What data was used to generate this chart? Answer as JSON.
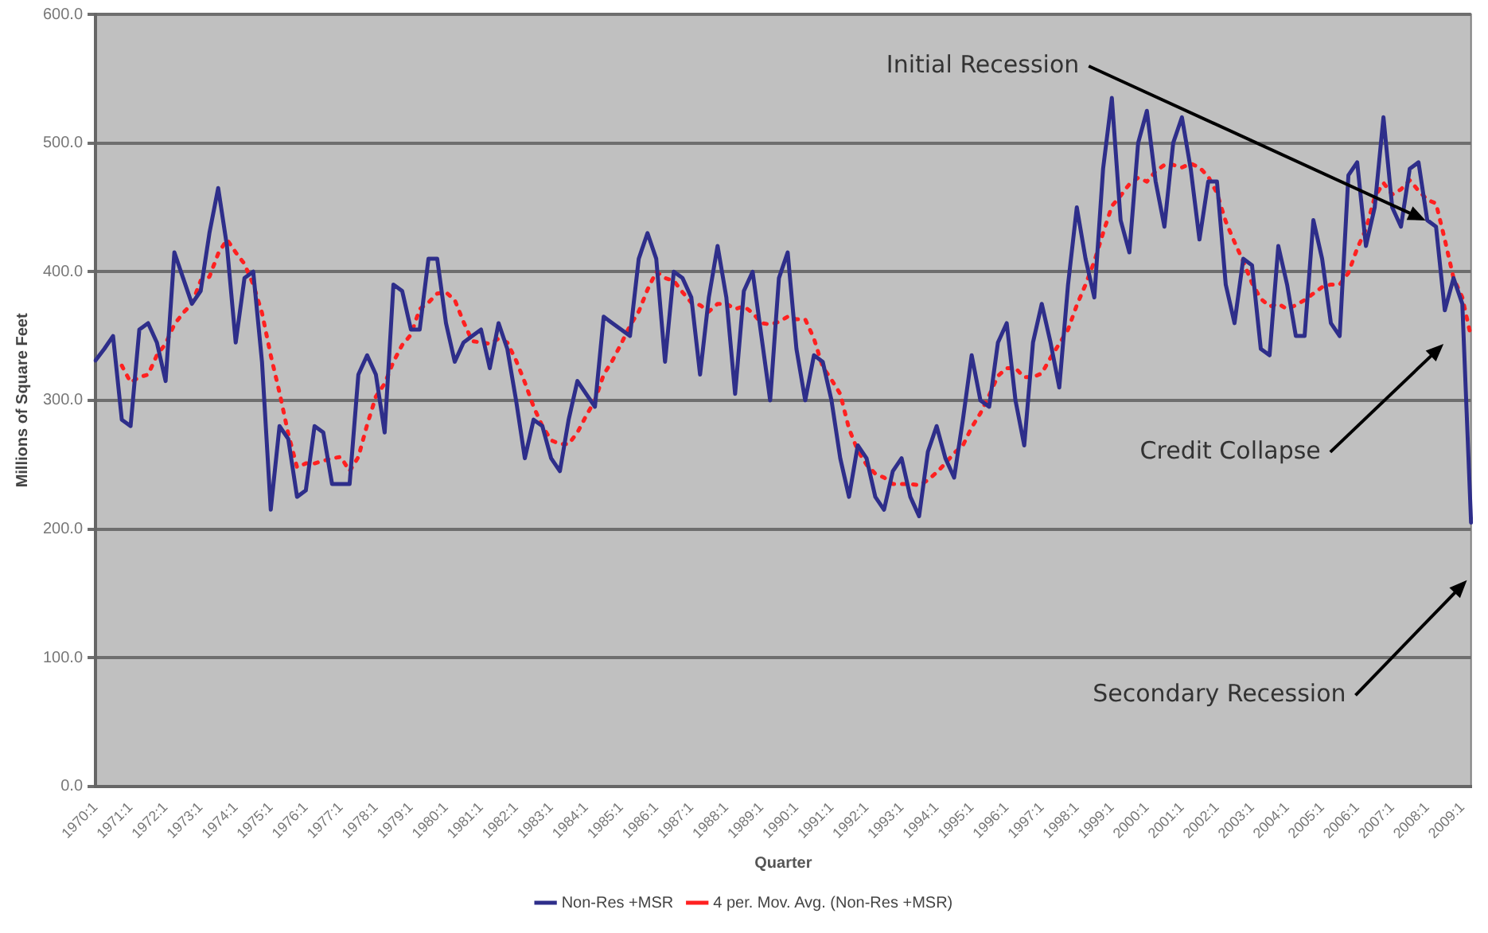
{
  "chart_data": {
    "type": "line",
    "xlabel": "Quarter",
    "ylabel": "Millions of Square Feet",
    "categories": [
      "1970:1",
      null,
      null,
      null,
      "1971:1",
      null,
      null,
      null,
      "1972:1",
      null,
      null,
      null,
      "1973:1",
      null,
      null,
      null,
      "1974:1",
      null,
      null,
      null,
      "1975:1",
      null,
      null,
      null,
      "1976:1",
      null,
      null,
      null,
      "1977:1",
      null,
      null,
      null,
      "1978:1",
      null,
      null,
      null,
      "1979:1",
      null,
      null,
      null,
      "1980:1",
      null,
      null,
      null,
      "1981:1",
      null,
      null,
      null,
      "1982:1",
      null,
      null,
      null,
      "1983:1",
      null,
      null,
      null,
      "1984:1",
      null,
      null,
      null,
      "1985:1",
      null,
      null,
      null,
      "1986:1",
      null,
      null,
      null,
      "1987:1",
      null,
      null,
      null,
      "1988:1",
      null,
      null,
      null,
      "1989:1",
      null,
      null,
      null,
      "1990:1",
      null,
      null,
      null,
      "1991:1",
      null,
      null,
      null,
      "1992:1",
      null,
      null,
      null,
      "1993:1",
      null,
      null,
      null,
      "1994:1",
      null,
      null,
      null,
      "1995:1",
      null,
      null,
      null,
      "1996:1",
      null,
      null,
      null,
      "1997:1",
      null,
      null,
      null,
      "1998:1",
      null,
      null,
      null,
      "1999:1",
      null,
      null,
      null,
      "2000:1",
      null,
      null,
      null,
      "2001:1",
      null,
      null,
      null,
      "2002:1",
      null,
      null,
      null,
      "2003:1",
      null,
      null,
      null,
      "2004:1",
      null,
      null,
      null,
      "2005:1",
      null,
      null,
      null,
      "2006:1",
      null,
      null,
      null,
      "2007:1",
      null,
      null,
      null,
      "2008:1",
      null,
      null,
      null,
      "2009:1",
      null
    ],
    "series": [
      {
        "name": "Non-Res +MSR",
        "color": "#2e2e8a",
        "line_style": "solid",
        "values": [
          331,
          340,
          350,
          285,
          280,
          355,
          360,
          345,
          315,
          415,
          395,
          375,
          385,
          430,
          465,
          420,
          345,
          395,
          400,
          330,
          215,
          280,
          270,
          225,
          230,
          280,
          275,
          235,
          235,
          235,
          320,
          335,
          320,
          275,
          390,
          385,
          355,
          355,
          410,
          410,
          360,
          330,
          345,
          350,
          355,
          325,
          360,
          340,
          300,
          255,
          285,
          280,
          255,
          245,
          285,
          315,
          305,
          295,
          365,
          360,
          355,
          350,
          410,
          430,
          410,
          330,
          400,
          395,
          380,
          320,
          380,
          420,
          380,
          305,
          385,
          400,
          350,
          300,
          395,
          415,
          340,
          300,
          335,
          330,
          300,
          255,
          225,
          265,
          255,
          225,
          215,
          245,
          255,
          225,
          210,
          260,
          280,
          255,
          240,
          285,
          335,
          300,
          295,
          345,
          360,
          300,
          265,
          345,
          375,
          345,
          310,
          390,
          450,
          410,
          380,
          480,
          535,
          440,
          415,
          500,
          525,
          470,
          435,
          500,
          520,
          480,
          425,
          470,
          470,
          390,
          360,
          410,
          405,
          340,
          335,
          420,
          390,
          350,
          350,
          440,
          410,
          360,
          350,
          475,
          485,
          420,
          450,
          520,
          450,
          435,
          480,
          485,
          440,
          435,
          370,
          395,
          375,
          205
        ]
      },
      {
        "name": "4 per. Mov. Avg. (Non-Res +MSR)",
        "color": "#ff2020",
        "line_style": "dotted",
        "values": [
          null,
          null,
          null,
          327,
          314,
          318,
          320,
          335,
          344,
          359,
          368,
          375,
          393,
          396,
          414,
          425,
          415,
          406,
          390,
          368,
          335,
          306,
          274,
          248,
          251,
          251,
          253,
          255,
          256,
          245,
          256,
          281,
          303,
          313,
          330,
          343,
          351,
          371,
          376,
          383,
          384,
          378,
          361,
          346,
          345,
          344,
          348,
          345,
          331,
          314,
          295,
          280,
          269,
          266,
          266,
          275,
          288,
          300,
          320,
          331,
          344,
          358,
          369,
          386,
          400,
          395,
          393,
          384,
          376,
          374,
          369,
          375,
          375,
          371,
          373,
          368,
          360,
          359,
          361,
          365,
          363,
          363,
          348,
          326,
          316,
          305,
          278,
          261,
          250,
          243,
          240,
          235,
          235,
          235,
          234,
          238,
          244,
          251,
          259,
          265,
          279,
          290,
          304,
          319,
          325,
          325,
          318,
          318,
          321,
          333,
          344,
          355,
          374,
          390,
          408,
          430,
          451,
          459,
          468,
          473,
          470,
          478,
          483,
          483,
          481,
          484,
          481,
          474,
          461,
          439,
          423,
          408,
          391,
          379,
          373,
          375,
          371,
          374,
          378,
          383,
          388,
          390,
          390,
          399,
          418,
          433,
          458,
          469,
          460,
          464,
          471,
          463,
          456,
          453,
          425,
          395,
          380,
          349
        ]
      }
    ],
    "ylim": [
      0,
      600
    ],
    "yticks": [
      {
        "value": 0,
        "label": "0.0"
      },
      {
        "value": 100,
        "label": "100.0"
      },
      {
        "value": 200,
        "label": "200.0"
      },
      {
        "value": 300,
        "label": "300.0"
      },
      {
        "value": 400,
        "label": "400.0"
      },
      {
        "value": 500,
        "label": "500.0"
      },
      {
        "value": 600,
        "label": "600.0"
      }
    ],
    "grid": "y",
    "legend": "bottom",
    "marker": "none",
    "annotations": [
      "Initial Recession",
      "Credit Collapse",
      "Secondary Recession"
    ]
  }
}
